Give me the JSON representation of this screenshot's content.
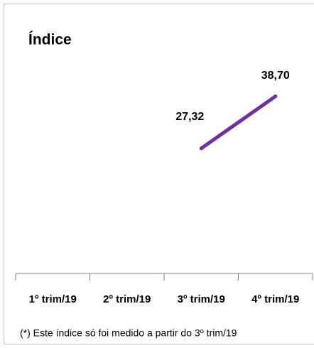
{
  "chart_data": {
    "type": "line",
    "title": "Índice",
    "categories": [
      "1º trim/19",
      "2º trim/19",
      "3º trim/19",
      "4º trim/19"
    ],
    "values": [
      null,
      null,
      27.32,
      38.7
    ],
    "value_labels": [
      null,
      null,
      "27,32",
      "38,70"
    ],
    "color": "#7030a0",
    "ylim": [
      0,
      45
    ],
    "footnote": "(*) Este índice só foi medido a partir do 3º trim/19"
  }
}
